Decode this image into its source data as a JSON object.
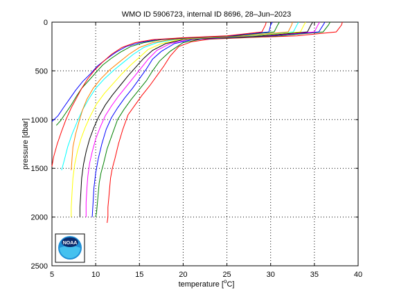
{
  "chart_data": {
    "type": "line",
    "title": "WMO ID 5906723, internal ID 8696, 28–Jun–2023",
    "xlabel": "temperature [°C]",
    "xlabel_main": "temperature [",
    "xlabel_sup": "o",
    "xlabel_end": "C]",
    "ylabel": "pressure [dbar]",
    "xlim": [
      5,
      40
    ],
    "ylim": [
      0,
      2500
    ],
    "y_reversed": true,
    "grid": true,
    "xticks": [
      5,
      10,
      15,
      20,
      25,
      30,
      35,
      40
    ],
    "yticks": [
      0,
      500,
      1000,
      1500,
      2000,
      2500
    ],
    "logo": {
      "text": "NOAA",
      "icon": "noaa-logo"
    },
    "series": [
      {
        "color": "#ff0000",
        "points": [
          [
            38.2,
            0
          ],
          [
            38.1,
            30
          ],
          [
            37.5,
            100
          ],
          [
            33.0,
            140
          ],
          [
            27.0,
            160
          ],
          [
            23.0,
            175
          ],
          [
            21.0,
            200
          ],
          [
            19.5,
            250
          ],
          [
            18.5,
            350
          ],
          [
            17.8,
            450
          ],
          [
            17.0,
            550
          ],
          [
            16.2,
            650
          ],
          [
            15.3,
            750
          ],
          [
            14.5,
            850
          ],
          [
            13.7,
            950
          ],
          [
            13.1,
            1100
          ],
          [
            12.6,
            1250
          ],
          [
            12.2,
            1400
          ],
          [
            11.9,
            1500
          ],
          [
            11.7,
            1600
          ],
          [
            11.6,
            1700
          ],
          [
            11.5,
            1800
          ],
          [
            11.4,
            1900
          ],
          [
            11.4,
            2000
          ],
          [
            11.3,
            2060
          ]
        ]
      },
      {
        "color": "#008000",
        "points": [
          [
            36.8,
            0
          ],
          [
            36.6,
            30
          ],
          [
            36.0,
            100
          ],
          [
            31.0,
            140
          ],
          [
            26.0,
            160
          ],
          [
            22.0,
            175
          ],
          [
            20.0,
            210
          ],
          [
            18.5,
            300
          ],
          [
            17.3,
            400
          ],
          [
            16.5,
            500
          ],
          [
            15.8,
            600
          ],
          [
            14.9,
            700
          ],
          [
            14.0,
            800
          ],
          [
            13.2,
            900
          ],
          [
            12.5,
            1000
          ],
          [
            11.9,
            1150
          ],
          [
            11.3,
            1300
          ],
          [
            10.9,
            1450
          ],
          [
            10.6,
            1550
          ],
          [
            10.4,
            1650
          ],
          [
            10.3,
            1750
          ],
          [
            10.2,
            1850
          ],
          [
            10.1,
            1950
          ],
          [
            10.0,
            2000
          ]
        ]
      },
      {
        "color": "#0000ff",
        "points": [
          [
            36.2,
            0
          ],
          [
            36.0,
            30
          ],
          [
            35.5,
            100
          ],
          [
            30.0,
            140
          ],
          [
            25.0,
            160
          ],
          [
            21.0,
            180
          ],
          [
            19.0,
            220
          ],
          [
            17.5,
            300
          ],
          [
            16.5,
            380
          ],
          [
            15.8,
            480
          ],
          [
            15.0,
            580
          ],
          [
            14.2,
            680
          ],
          [
            13.3,
            780
          ],
          [
            12.5,
            880
          ],
          [
            11.8,
            980
          ],
          [
            11.2,
            1100
          ],
          [
            10.7,
            1250
          ],
          [
            10.3,
            1400
          ],
          [
            10.0,
            1550
          ],
          [
            9.8,
            1700
          ],
          [
            9.7,
            1850
          ],
          [
            9.6,
            2000
          ]
        ]
      },
      {
        "color": "#ff00ff",
        "points": [
          [
            35.6,
            0
          ],
          [
            35.4,
            30
          ],
          [
            35.0,
            100
          ],
          [
            29.5,
            140
          ],
          [
            24.5,
            160
          ],
          [
            20.5,
            180
          ],
          [
            18.5,
            220
          ],
          [
            17.0,
            290
          ],
          [
            16.0,
            380
          ],
          [
            15.2,
            470
          ],
          [
            14.4,
            560
          ],
          [
            13.5,
            660
          ],
          [
            12.6,
            760
          ],
          [
            11.8,
            860
          ],
          [
            11.1,
            960
          ],
          [
            10.5,
            1080
          ],
          [
            10.0,
            1200
          ],
          [
            9.6,
            1330
          ],
          [
            9.3,
            1450
          ],
          [
            9.1,
            1580
          ],
          [
            9.0,
            1700
          ],
          [
            8.9,
            1850
          ],
          [
            8.9,
            2000
          ]
        ]
      },
      {
        "color": "#000000",
        "points": [
          [
            34.8,
            0
          ],
          [
            34.6,
            30
          ],
          [
            34.2,
            100
          ],
          [
            29.0,
            140
          ],
          [
            24.0,
            160
          ],
          [
            20.0,
            180
          ],
          [
            18.0,
            220
          ],
          [
            16.5,
            290
          ],
          [
            15.5,
            370
          ],
          [
            14.6,
            460
          ],
          [
            13.7,
            550
          ],
          [
            12.8,
            650
          ],
          [
            11.9,
            750
          ],
          [
            11.1,
            850
          ],
          [
            10.4,
            960
          ],
          [
            9.8,
            1080
          ],
          [
            9.3,
            1200
          ],
          [
            8.9,
            1330
          ],
          [
            8.6,
            1460
          ],
          [
            8.4,
            1600
          ],
          [
            8.3,
            1750
          ],
          [
            8.2,
            1900
          ],
          [
            8.2,
            2000
          ]
        ]
      },
      {
        "color": "#ffff00",
        "points": [
          [
            34.0,
            0
          ],
          [
            33.8,
            30
          ],
          [
            33.4,
            100
          ],
          [
            28.0,
            140
          ],
          [
            23.0,
            160
          ],
          [
            19.5,
            180
          ],
          [
            17.5,
            220
          ],
          [
            16.0,
            280
          ],
          [
            15.0,
            360
          ],
          [
            14.0,
            440
          ],
          [
            13.0,
            530
          ],
          [
            12.0,
            630
          ],
          [
            11.0,
            730
          ],
          [
            10.1,
            840
          ],
          [
            9.4,
            960
          ],
          [
            8.8,
            1080
          ],
          [
            8.3,
            1200
          ],
          [
            7.9,
            1330
          ],
          [
            7.6,
            1460
          ],
          [
            7.4,
            1600
          ],
          [
            7.3,
            1750
          ],
          [
            7.2,
            1900
          ],
          [
            7.2,
            2000
          ]
        ]
      },
      {
        "color": "#00ffff",
        "points": [
          [
            33.2,
            0
          ],
          [
            33.0,
            30
          ],
          [
            32.6,
            100
          ],
          [
            27.5,
            140
          ],
          [
            22.5,
            160
          ],
          [
            19.0,
            180
          ],
          [
            17.0,
            210
          ],
          [
            15.5,
            260
          ],
          [
            14.3,
            330
          ],
          [
            13.2,
            410
          ],
          [
            12.1,
            490
          ],
          [
            11.0,
            580
          ],
          [
            10.0,
            680
          ],
          [
            9.2,
            790
          ],
          [
            8.5,
            900
          ],
          [
            7.9,
            1020
          ],
          [
            7.3,
            1150
          ],
          [
            6.8,
            1280
          ],
          [
            6.4,
            1420
          ],
          [
            6.1,
            1520
          ]
        ]
      },
      {
        "color": "#ff8000",
        "points": [
          [
            32.5,
            0
          ],
          [
            32.4,
            30
          ],
          [
            32.0,
            100
          ],
          [
            27.0,
            140
          ],
          [
            22.0,
            160
          ],
          [
            18.5,
            180
          ],
          [
            16.5,
            210
          ],
          [
            15.0,
            260
          ],
          [
            13.8,
            330
          ],
          [
            12.7,
            410
          ],
          [
            11.6,
            490
          ],
          [
            10.6,
            580
          ],
          [
            9.7,
            680
          ],
          [
            9.0,
            790
          ],
          [
            8.5,
            900
          ],
          [
            8.1,
            1020
          ],
          [
            7.7,
            1150
          ],
          [
            7.4,
            1280
          ],
          [
            7.3,
            1400
          ],
          [
            7.2,
            1520
          ]
        ]
      },
      {
        "color": "#008000",
        "points": [
          [
            31.0,
            0
          ],
          [
            30.8,
            30
          ],
          [
            30.4,
            100
          ],
          [
            26.0,
            140
          ],
          [
            21.0,
            160
          ],
          [
            17.5,
            180
          ],
          [
            15.5,
            210
          ],
          [
            14.0,
            250
          ],
          [
            12.8,
            310
          ],
          [
            11.8,
            370
          ],
          [
            10.8,
            440
          ],
          [
            10.0,
            520
          ],
          [
            9.2,
            600
          ],
          [
            8.4,
            680
          ],
          [
            7.8,
            760
          ],
          [
            7.2,
            850
          ],
          [
            6.6,
            930
          ],
          [
            6.0,
            1010
          ],
          [
            5.5,
            1060
          ]
        ]
      },
      {
        "color": "#0000ff",
        "points": [
          [
            30.2,
            0
          ],
          [
            30.0,
            30
          ],
          [
            29.8,
            100
          ],
          [
            25.5,
            140
          ],
          [
            20.5,
            160
          ],
          [
            17.0,
            180
          ],
          [
            15.0,
            210
          ],
          [
            13.5,
            250
          ],
          [
            12.3,
            310
          ],
          [
            11.2,
            380
          ],
          [
            10.2,
            450
          ],
          [
            9.4,
            530
          ],
          [
            8.5,
            610
          ],
          [
            7.7,
            700
          ],
          [
            7.0,
            790
          ],
          [
            6.3,
            880
          ],
          [
            5.7,
            960
          ],
          [
            5.0,
            1020
          ]
        ]
      },
      {
        "color": "#ff0000",
        "points": [
          [
            29.5,
            0
          ],
          [
            29.4,
            30
          ],
          [
            29.0,
            100
          ],
          [
            25.0,
            140
          ],
          [
            20.0,
            160
          ],
          [
            16.5,
            180
          ],
          [
            14.5,
            210
          ],
          [
            13.0,
            260
          ],
          [
            11.8,
            330
          ],
          [
            10.8,
            410
          ],
          [
            9.9,
            490
          ],
          [
            9.1,
            580
          ],
          [
            8.4,
            680
          ],
          [
            7.8,
            780
          ],
          [
            7.2,
            880
          ],
          [
            6.6,
            1000
          ],
          [
            6.1,
            1120
          ],
          [
            5.6,
            1250
          ],
          [
            5.2,
            1380
          ],
          [
            5.0,
            1480
          ]
        ]
      }
    ]
  }
}
